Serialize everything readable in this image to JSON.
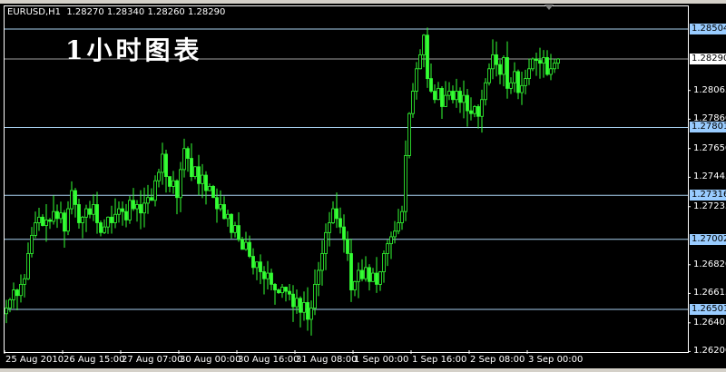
{
  "header": {
    "symbol": "EURUSD,H1",
    "ohlc": "1.28270 1.28340 1.28260 1.28290"
  },
  "title": "1小时图表",
  "colors": {
    "background": "#000000",
    "candle": "#33ff33",
    "level_line": "#a8d0f0",
    "level_label_bg": "#99ccff",
    "current_line": "#a0a0a0"
  },
  "chart_data": {
    "type": "candlestick",
    "ylim": [
      1.262,
      1.2867
    ],
    "price_ticks": [
      "1.28065",
      "1.27860",
      "1.27650",
      "1.27445",
      "1.27235",
      "1.26820",
      "1.26615",
      "1.26405",
      "1.26200"
    ],
    "levels": [
      "1.28504",
      "1.27801",
      "1.27316",
      "1.27002",
      "1.26501"
    ],
    "current_price": "1.28290",
    "time_labels": [
      "25 Aug 2010",
      "26 Aug 15:00",
      "27 Aug 07:00",
      "30 Aug 00:00",
      "30 Aug 16:00",
      "31 Aug 08:00",
      "1 Sep 00:00",
      "1 Sep 16:00",
      "2 Sep 08:00",
      "3 Sep 00:00"
    ],
    "closes": [
      1.2651,
      1.2657,
      1.2664,
      1.266,
      1.2668,
      1.2672,
      1.269,
      1.2703,
      1.2712,
      1.2716,
      1.271,
      1.2714,
      1.2713,
      1.272,
      1.2715,
      1.2719,
      1.2706,
      1.2722,
      1.2735,
      1.2725,
      1.2712,
      1.2716,
      1.2722,
      1.2718,
      1.2725,
      1.2712,
      1.2705,
      1.2709,
      1.2716,
      1.2712,
      1.2718,
      1.2722,
      1.272,
      1.2714,
      1.2728,
      1.2722,
      1.2725,
      1.2719,
      1.2726,
      1.273,
      1.2728,
      1.2742,
      1.2748,
      1.2761,
      1.2745,
      1.2738,
      1.2742,
      1.273,
      1.275,
      1.2765,
      1.2758,
      1.2745,
      1.2752,
      1.274,
      1.2746,
      1.2735,
      1.2738,
      1.273,
      1.2722,
      1.2725,
      1.2715,
      1.2718,
      1.2705,
      1.271,
      1.27,
      1.2693,
      1.2698,
      1.2688,
      1.268,
      1.2684,
      1.2677,
      1.2672,
      1.2676,
      1.2668,
      1.2664,
      1.2662,
      1.2666,
      1.2663,
      1.2661,
      1.2652,
      1.2658,
      1.2648,
      1.2655,
      1.2643,
      1.2651,
      1.2668,
      1.2678,
      1.269,
      1.2705,
      1.2712,
      1.2722,
      1.2715,
      1.2709,
      1.27,
      1.269,
      1.2664,
      1.267,
      1.2678,
      1.2672,
      1.268,
      1.267,
      1.2676,
      1.2668,
      1.2677,
      1.269,
      1.2697,
      1.2702,
      1.2706,
      1.2712,
      1.272,
      1.276,
      1.279,
      1.2806,
      1.2822,
      1.2832,
      1.2846,
      1.2815,
      1.2806,
      1.28,
      1.2808,
      1.2795,
      1.2803,
      1.2806,
      1.28,
      1.2806,
      1.2798,
      1.2803,
      1.2792,
      1.279,
      1.2795,
      1.2788,
      1.28,
      1.2812,
      1.2822,
      1.2832,
      1.2825,
      1.2818,
      1.283,
      1.2808,
      1.2812,
      1.282,
      1.2805,
      1.281,
      1.2815,
      1.2822,
      1.2829,
      1.2828,
      1.2826,
      1.283,
      1.2818,
      1.2822,
      1.2826,
      1.2829
    ]
  }
}
